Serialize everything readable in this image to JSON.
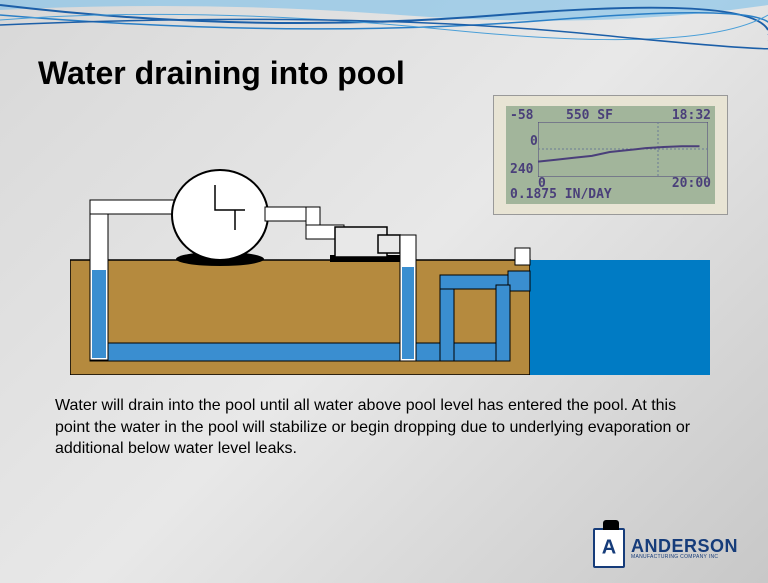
{
  "title": "Water draining into pool",
  "body": "Water will drain into the pool until all water above pool level has entered the pool.  At this point the water in the pool will stabilize or begin dropping due to underlying evaporation or additional below water level leaks.",
  "lcd": {
    "top_left": "-58",
    "top_center": "550 SF",
    "top_right": "18:32",
    "mid_left": "0",
    "lower_left": "240",
    "bottom_zero": "0",
    "bottom_right": "20:00",
    "rate": "0.1875 IN/DAY",
    "bg_color": "#a2b59b",
    "text_color": "#4a3f7a",
    "frame_color": "#e8e4d4",
    "chart_line_color": "#4a3f7a",
    "grid_color": "#6a7a96",
    "line_data": [
      0.1,
      0.15,
      0.2,
      0.25,
      0.35,
      0.4,
      0.45,
      0.48,
      0.5,
      0.5
    ]
  },
  "diagram": {
    "ground_color": "#b58a3e",
    "pool_water_color": "#007bc4",
    "pipe_water_color": "#3a8ed0",
    "pipe_color": "#ffffff",
    "pipe_outline": "#000000",
    "filter_base_color": "#000000",
    "pump_body_color": "#e8e8e8",
    "sky_bg": "transparent"
  },
  "wave": {
    "colors": [
      "#1c5fa8",
      "#2a7fc6",
      "#4a9fd8",
      "#8ac4e8"
    ]
  },
  "logo": {
    "name": "ANDERSON",
    "sub": "MANUFACTURING COMPANY INC"
  }
}
